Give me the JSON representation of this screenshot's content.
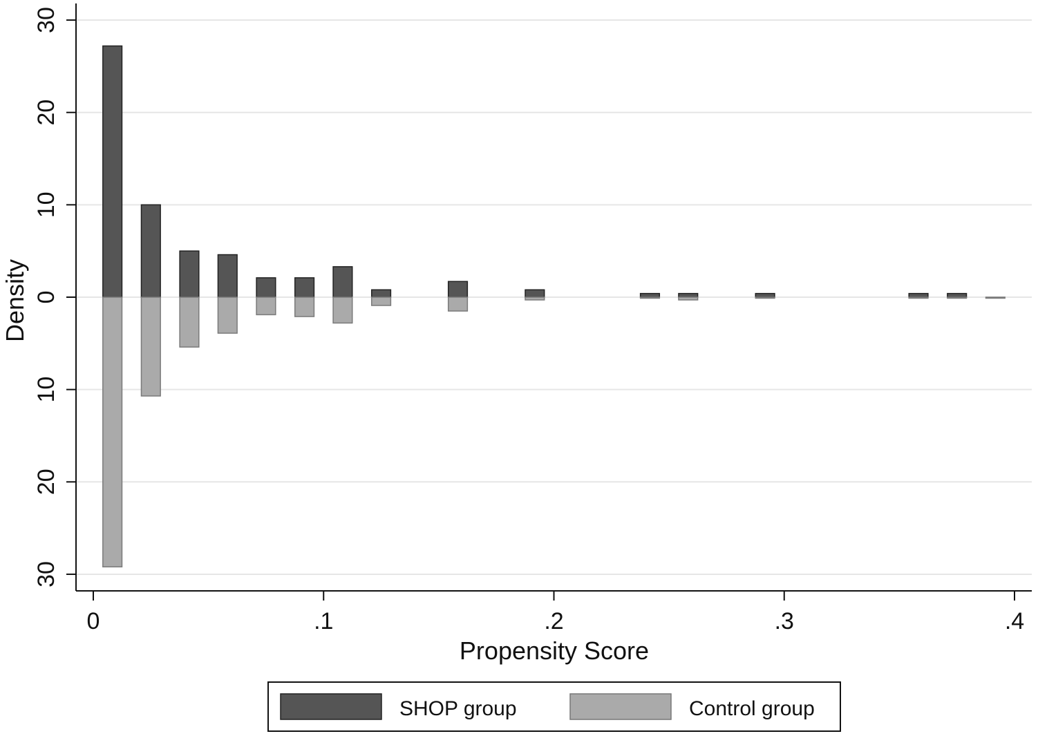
{
  "chart_data": {
    "type": "bar",
    "title": "",
    "xlabel": "Propensity Score",
    "ylabel": "Density",
    "xlim": [
      -0.0075,
      0.4075
    ],
    "ylim": [
      -31.8,
      31.8
    ],
    "x_ticks": [
      0,
      0.1,
      0.2,
      0.3,
      0.4
    ],
    "x_tick_labels": [
      "0",
      ".1",
      ".2",
      ".3",
      ".4"
    ],
    "y_ticks": [
      30,
      20,
      10,
      0,
      -10,
      -20,
      -30
    ],
    "y_tick_labels": [
      "30",
      "20",
      "10",
      "0",
      "10",
      "20",
      "30"
    ],
    "grid": true,
    "legend_position": "bottom",
    "bin_width": 0.0083,
    "series": [
      {
        "name": "SHOP group",
        "color": "#555555",
        "direction": "up",
        "x": [
          0.0083,
          0.025,
          0.0417,
          0.0583,
          0.075,
          0.0917,
          0.1083,
          0.125,
          0.1583,
          0.1917,
          0.2417,
          0.2583,
          0.2917,
          0.3583,
          0.375
        ],
        "values": [
          27.2,
          10.0,
          5.0,
          4.6,
          2.1,
          2.1,
          3.3,
          0.8,
          1.7,
          0.8,
          0.4,
          0.4,
          0.4,
          0.4,
          0.4
        ]
      },
      {
        "name": "Control group",
        "color": "#aaaaaa",
        "direction": "down",
        "x": [
          0.0083,
          0.025,
          0.0417,
          0.0583,
          0.075,
          0.0917,
          0.1083,
          0.125,
          0.1583,
          0.1917,
          0.2417,
          0.2583,
          0.2917,
          0.3583,
          0.375,
          0.3917
        ],
        "values": [
          29.2,
          10.7,
          5.4,
          3.9,
          1.9,
          2.1,
          2.8,
          0.9,
          1.5,
          0.3,
          0.1,
          0.3,
          0.1,
          0.1,
          0.1,
          0.1
        ]
      }
    ]
  }
}
